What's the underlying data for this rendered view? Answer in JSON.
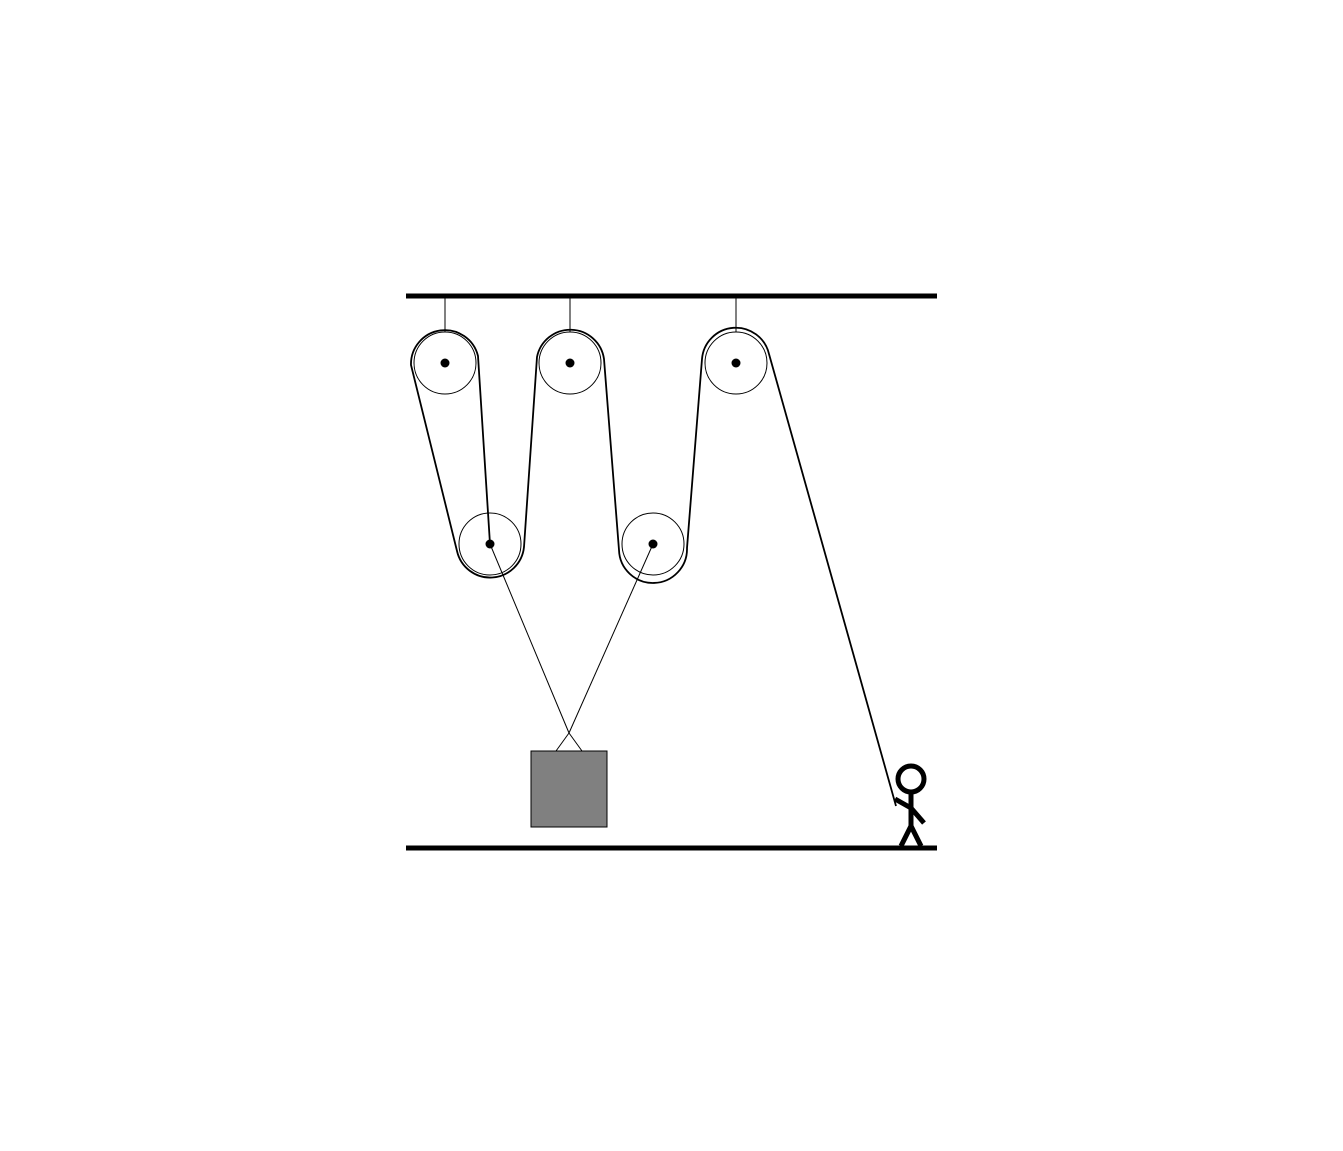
{
  "diagram": {
    "title": "",
    "fixed_pulleys": [
      {
        "name": "fixed-pulley-1"
      },
      {
        "name": "fixed-pulley-2"
      },
      {
        "name": "fixed-pulley-3"
      }
    ],
    "movable_pulleys": [
      {
        "name": "movable-pulley-1"
      },
      {
        "name": "movable-pulley-2"
      }
    ],
    "colors": {
      "line": "#000000",
      "load": "#808080",
      "background": "#ffffff"
    }
  }
}
